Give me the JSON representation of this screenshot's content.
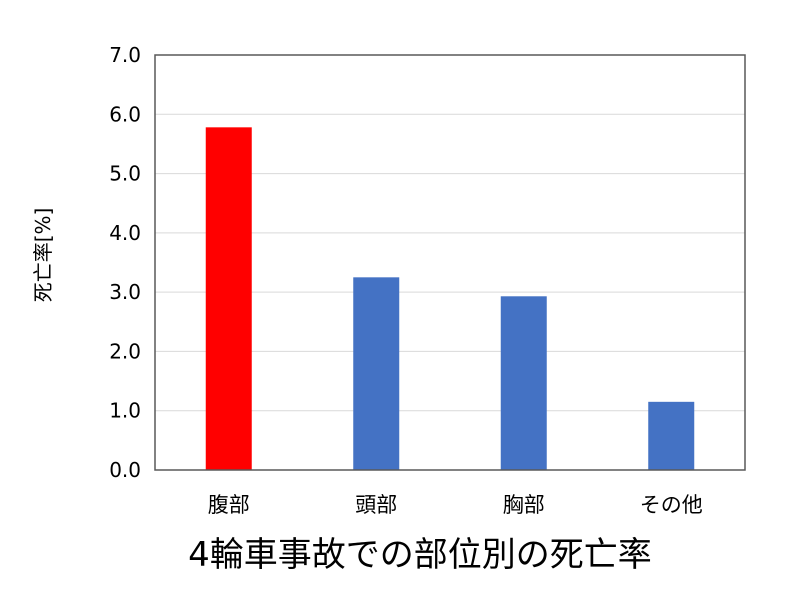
{
  "chart_data": {
    "type": "bar",
    "title": "4輪車事故での部位別の死亡率",
    "xlabel": "",
    "ylabel": "死亡率[%]",
    "categories": [
      "腹部",
      "頭部",
      "胸部",
      "その他"
    ],
    "values": [
      5.78,
      3.25,
      2.93,
      1.15
    ],
    "bar_colors": [
      "#ff0000",
      "#4472c4",
      "#4472c4",
      "#4472c4"
    ],
    "ylim": [
      0,
      7
    ],
    "yticks": [
      "0.0",
      "1.0",
      "2.0",
      "3.0",
      "4.0",
      "5.0",
      "6.0",
      "7.0"
    ],
    "grid": true,
    "legend": "none"
  },
  "colors": {
    "highlight": "#ff0000",
    "default_bar": "#4472c4",
    "grid": "#d9d9d9",
    "frame": "#595959"
  }
}
